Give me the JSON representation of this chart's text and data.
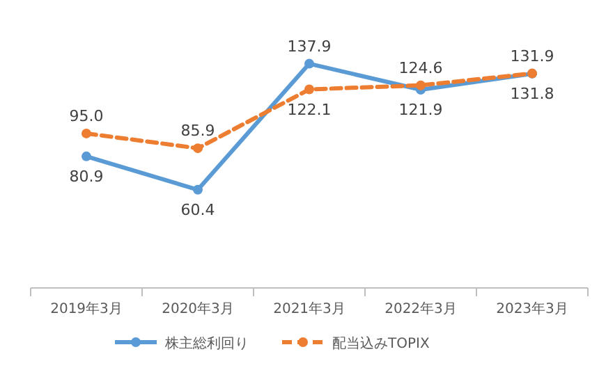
{
  "chart_data": {
    "type": "line",
    "categories": [
      "2019年3月",
      "2020年3月",
      "2021年3月",
      "2022年3月",
      "2023年3月"
    ],
    "series": [
      {
        "name": "株主総利回り",
        "color": "#5b9bd5",
        "values": [
          80.9,
          60.4,
          137.9,
          121.9,
          131.8
        ],
        "value_labels": [
          "80.9",
          "60.4",
          "137.9",
          "121.9",
          "131.8"
        ],
        "line_style": "solid"
      },
      {
        "name": "配当込みTOPIX",
        "color": "#ed7d31",
        "values": [
          95.0,
          85.9,
          122.1,
          124.6,
          131.9
        ],
        "value_labels": [
          "95.0",
          "85.9",
          "122.1",
          "124.6",
          "131.9"
        ],
        "line_style": "dashed"
      }
    ],
    "marker": "circle",
    "legend": "bottom",
    "tick_labels": "x"
  }
}
